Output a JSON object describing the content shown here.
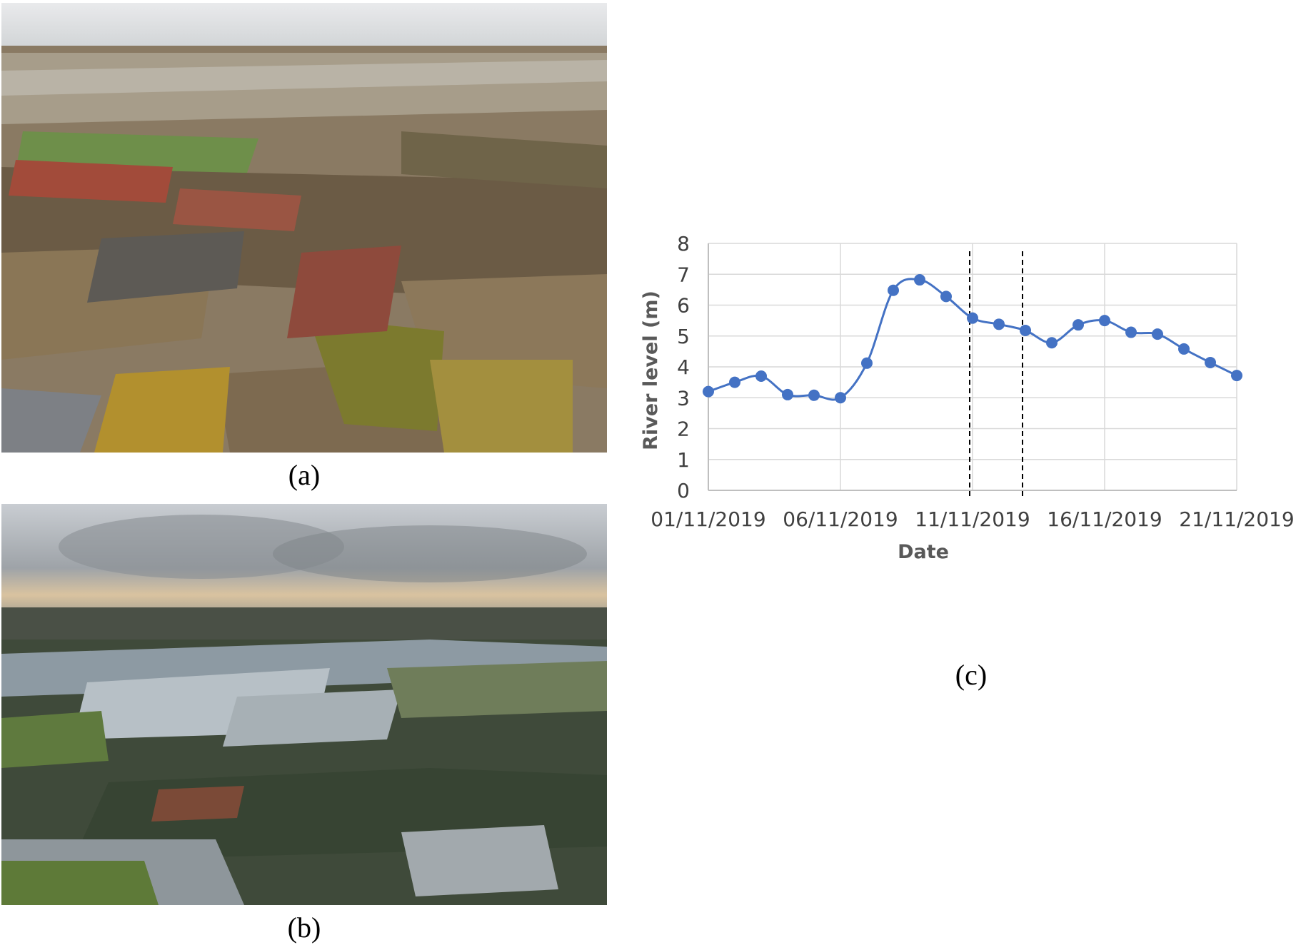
{
  "panels": {
    "a": "(a)",
    "b": "(b)",
    "c": "(c)"
  },
  "colors": {
    "series": "#4472C4",
    "grid": "#D9D9D9",
    "ref_line": "#000000"
  },
  "chart_data": {
    "type": "line",
    "title": "",
    "xlabel": "Date",
    "ylabel": "River level (m)",
    "ylim": [
      0,
      8
    ],
    "yticks": [
      0,
      1,
      2,
      3,
      4,
      5,
      6,
      7,
      8
    ],
    "xtick_labels": [
      "01/11/2019",
      "06/11/2019",
      "11/11/2019",
      "16/11/2019",
      "21/11/2019"
    ],
    "grid": true,
    "series": [
      {
        "x": [
          "01/11/2019",
          "02/11/2019",
          "03/11/2019",
          "04/11/2019",
          "05/11/2019",
          "06/11/2019",
          "07/11/2019",
          "08/11/2019",
          "09/11/2019",
          "10/11/2019",
          "11/11/2019",
          "12/11/2019",
          "13/11/2019",
          "14/11/2019",
          "15/11/2019",
          "16/11/2019",
          "17/11/2019",
          "18/11/2019",
          "19/11/2019",
          "20/11/2019",
          "21/11/2019"
        ],
        "values": [
          3.2,
          3.5,
          3.7,
          3.1,
          3.08,
          3.0,
          4.12,
          6.48,
          6.82,
          6.28,
          5.58,
          5.38,
          5.18,
          4.78,
          5.36,
          5.5,
          5.12,
          5.06,
          4.58,
          4.14,
          3.72
        ]
      }
    ],
    "vertical_reference_lines": [
      "11/11/2019",
      "13/11/2019"
    ]
  }
}
